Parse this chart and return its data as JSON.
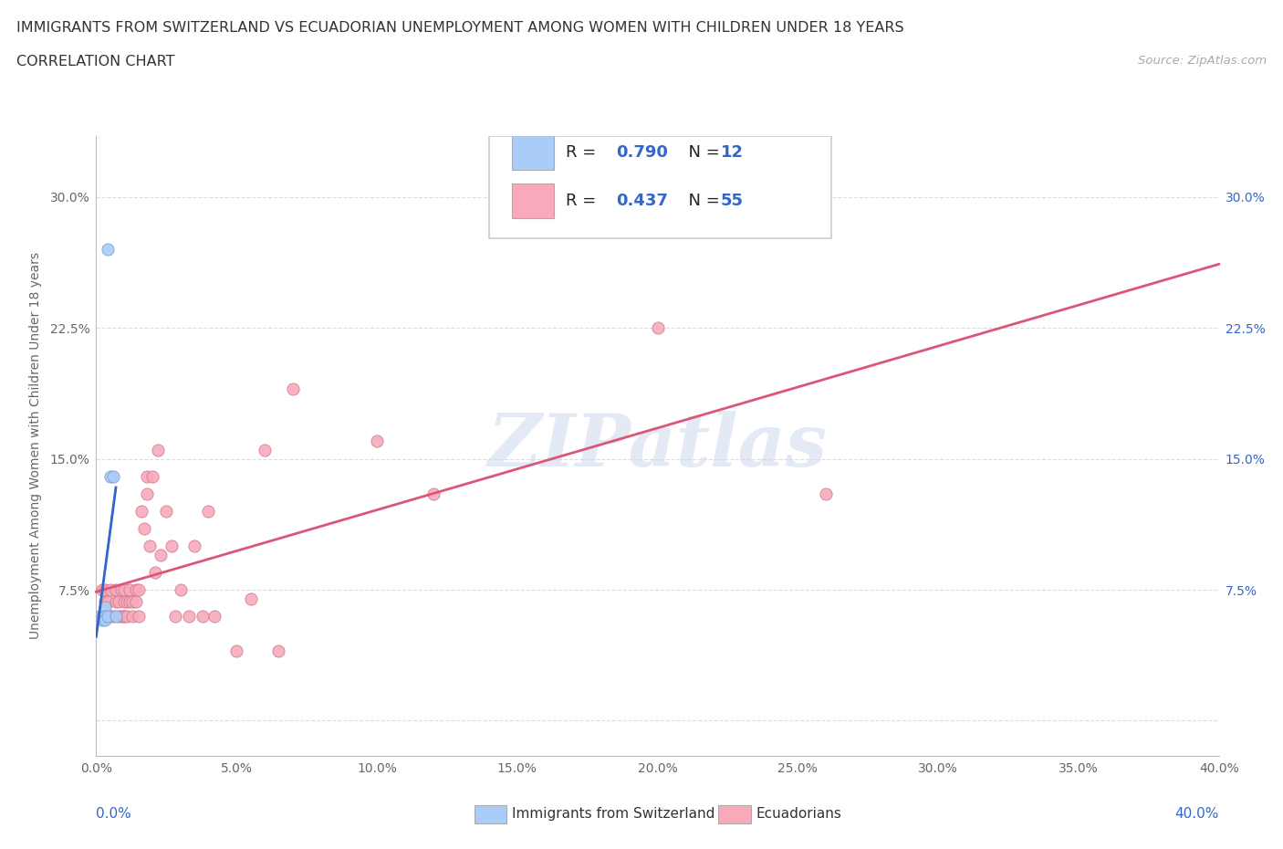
{
  "title_line1": "IMMIGRANTS FROM SWITZERLAND VS ECUADORIAN UNEMPLOYMENT AMONG WOMEN WITH CHILDREN UNDER 18 YEARS",
  "title_line2": "CORRELATION CHART",
  "source_text": "Source: ZipAtlas.com",
  "ylabel": "Unemployment Among Women with Children Under 18 years",
  "xlim": [
    0.0,
    0.4
  ],
  "ylim": [
    -0.02,
    0.335
  ],
  "swiss_R": 0.79,
  "swiss_N": 12,
  "ecu_R": 0.437,
  "ecu_N": 55,
  "swiss_color": "#aaccf8",
  "swiss_color_edge": "#7799cc",
  "ecu_color": "#f8aabb",
  "ecu_color_edge": "#cc7788",
  "trend_swiss_color": "#3366cc",
  "trend_ecu_color": "#dd5577",
  "swiss_points_x": [
    0.001,
    0.002,
    0.002,
    0.002,
    0.003,
    0.003,
    0.003,
    0.004,
    0.004,
    0.005,
    0.006,
    0.007
  ],
  "swiss_points_y": [
    0.06,
    0.06,
    0.06,
    0.058,
    0.065,
    0.06,
    0.058,
    0.06,
    0.27,
    0.14,
    0.14,
    0.06
  ],
  "ecu_points_x": [
    0.002,
    0.003,
    0.003,
    0.004,
    0.004,
    0.005,
    0.005,
    0.006,
    0.007,
    0.007,
    0.008,
    0.008,
    0.009,
    0.009,
    0.01,
    0.01,
    0.01,
    0.01,
    0.011,
    0.011,
    0.012,
    0.012,
    0.013,
    0.013,
    0.014,
    0.014,
    0.015,
    0.015,
    0.016,
    0.017,
    0.018,
    0.018,
    0.019,
    0.02,
    0.021,
    0.022,
    0.023,
    0.025,
    0.027,
    0.028,
    0.03,
    0.033,
    0.035,
    0.038,
    0.04,
    0.042,
    0.05,
    0.055,
    0.06,
    0.065,
    0.07,
    0.1,
    0.12,
    0.2,
    0.26
  ],
  "ecu_points_y": [
    0.075,
    0.068,
    0.075,
    0.06,
    0.068,
    0.06,
    0.075,
    0.06,
    0.075,
    0.068,
    0.06,
    0.068,
    0.06,
    0.075,
    0.06,
    0.068,
    0.06,
    0.075,
    0.06,
    0.068,
    0.075,
    0.068,
    0.06,
    0.068,
    0.075,
    0.068,
    0.06,
    0.075,
    0.12,
    0.11,
    0.13,
    0.14,
    0.1,
    0.14,
    0.085,
    0.155,
    0.095,
    0.12,
    0.1,
    0.06,
    0.075,
    0.06,
    0.1,
    0.06,
    0.12,
    0.06,
    0.04,
    0.07,
    0.155,
    0.04,
    0.19,
    0.16,
    0.13,
    0.225,
    0.13
  ],
  "background_color": "#ffffff",
  "grid_color": "#dddddd",
  "watermark_text": "ZIPatlas",
  "watermark_color": "#ccd8ee",
  "watermark_alpha": 0.55
}
